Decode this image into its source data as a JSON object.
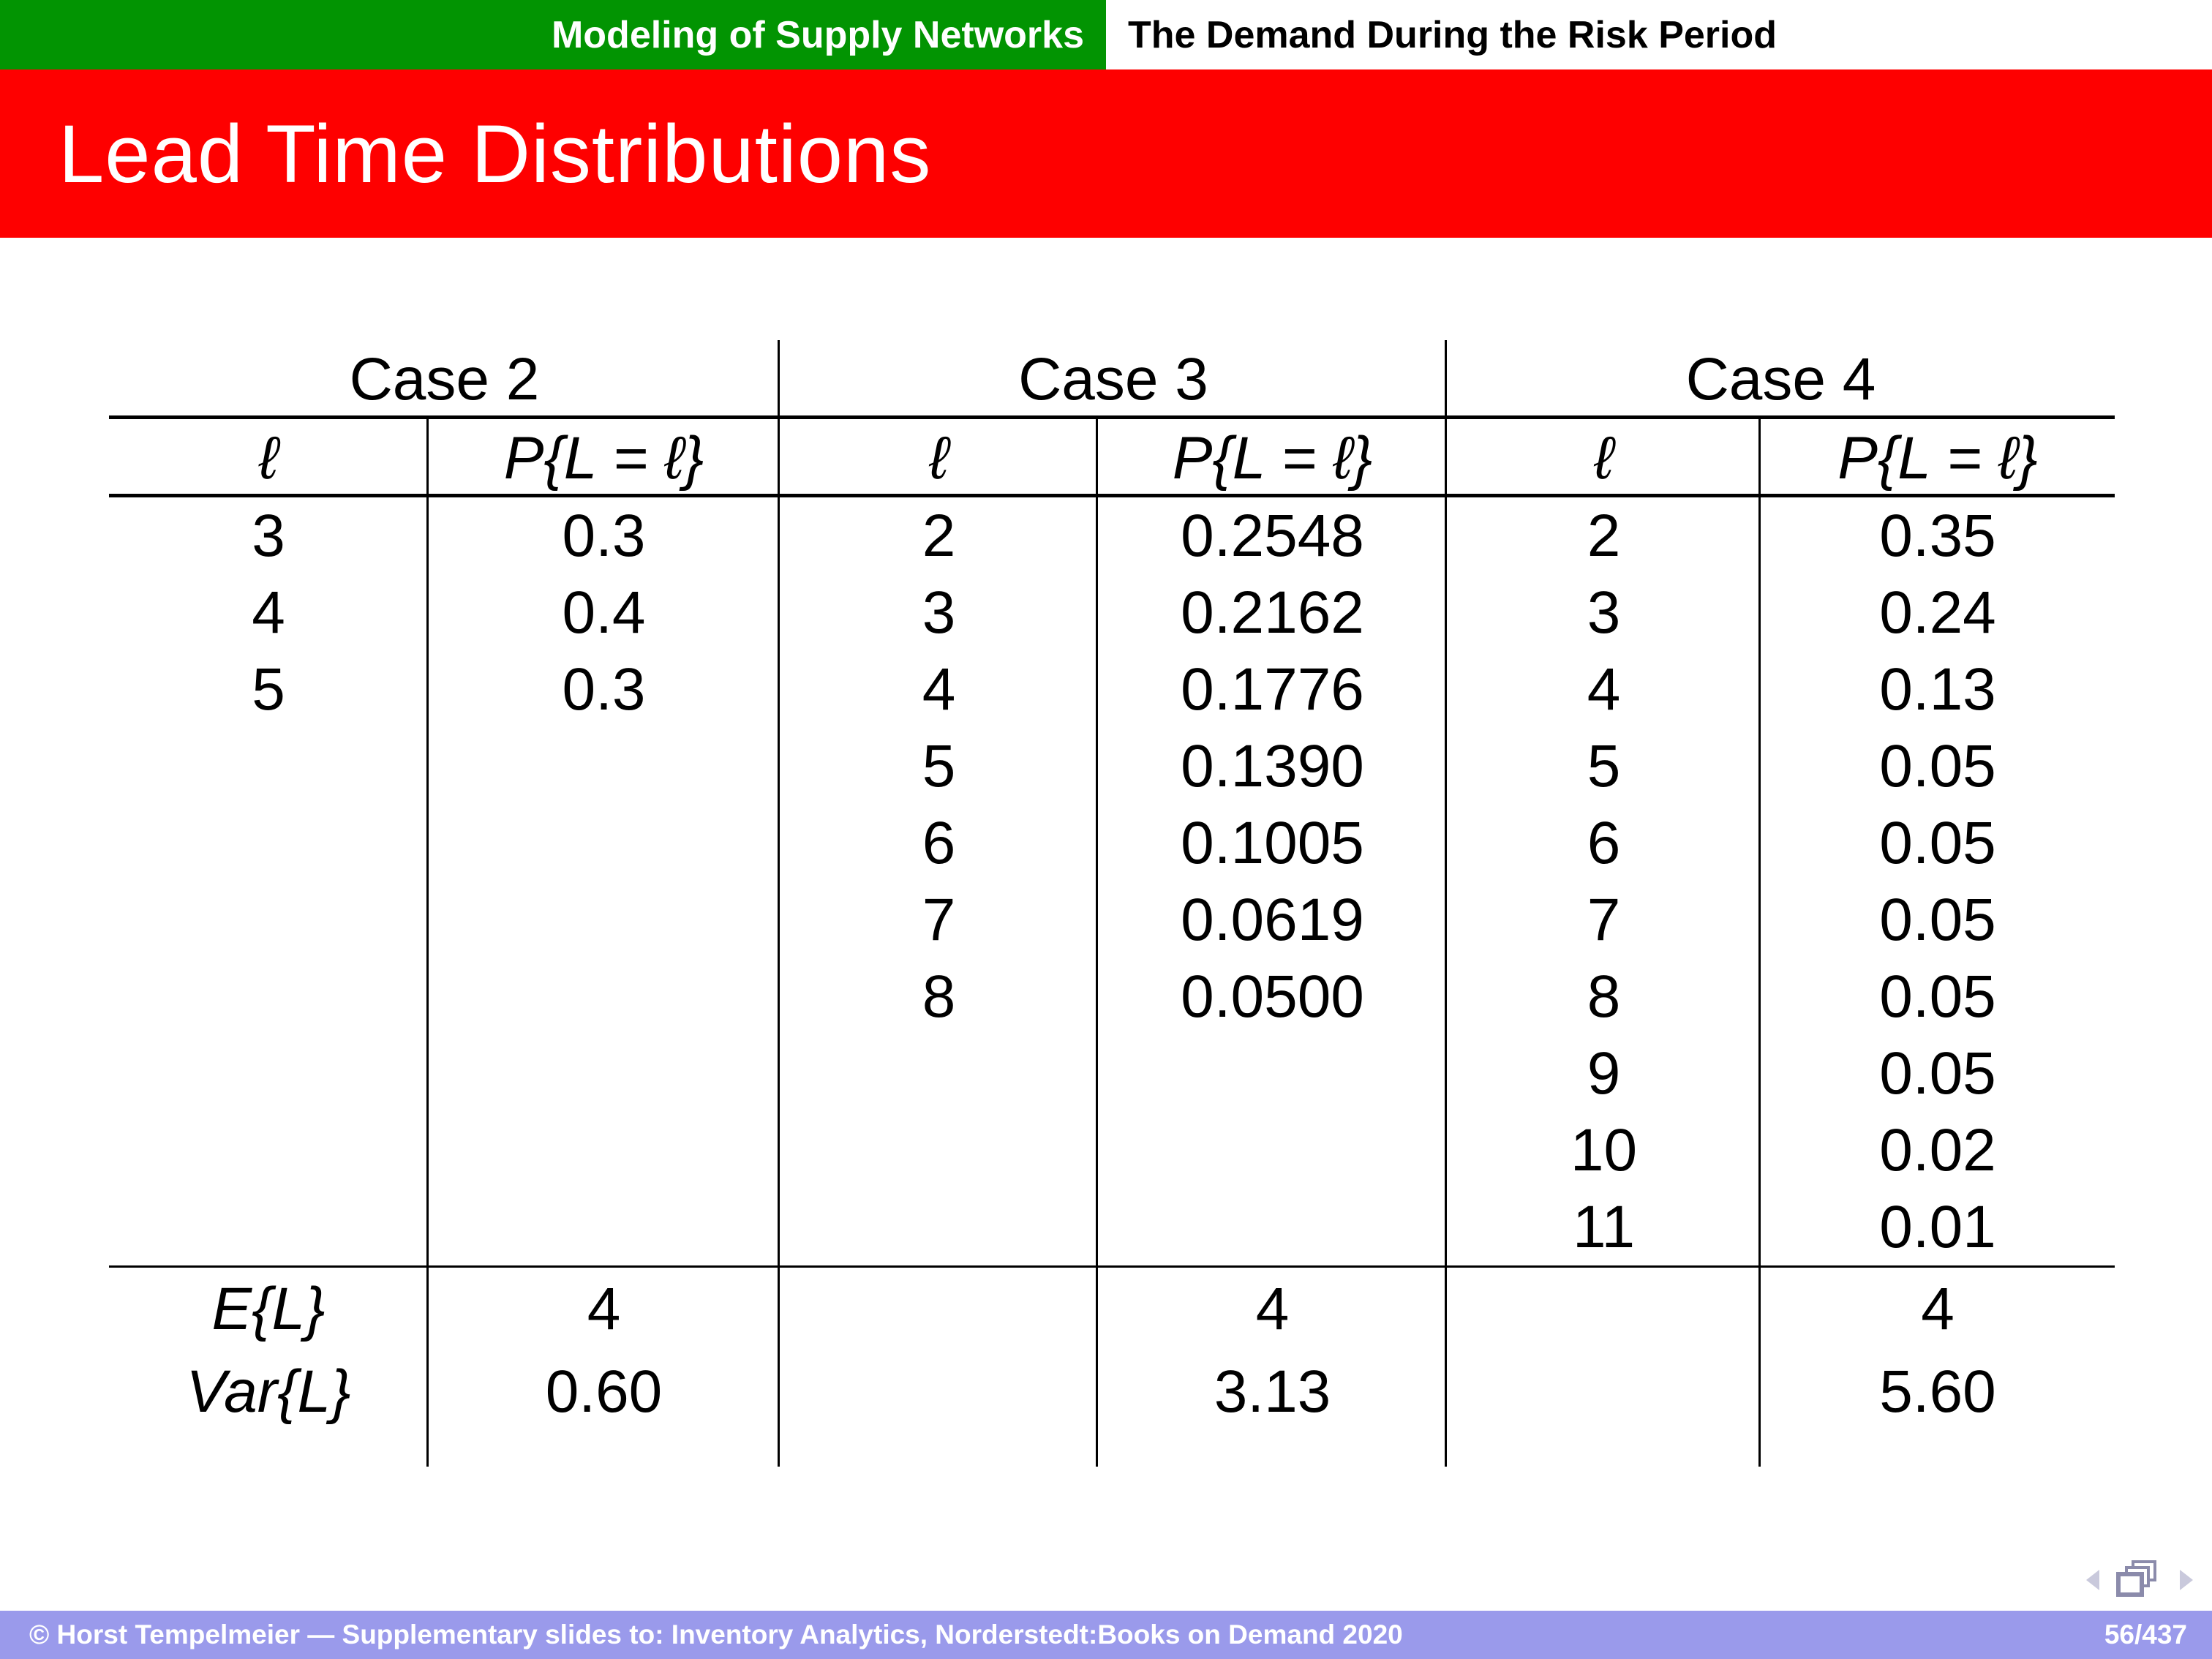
{
  "header": {
    "section": "Modeling of Supply Networks",
    "subsection": "The Demand During the Risk Period"
  },
  "title": "Lead Time Distributions",
  "table": {
    "col_headers": {
      "l": "ℓ",
      "p": "P{L = ℓ}"
    },
    "cases": [
      {
        "name": "Case 2",
        "rows": [
          [
            "3",
            "0.3"
          ],
          [
            "4",
            "0.4"
          ],
          [
            "5",
            "0.3"
          ]
        ],
        "E": "4",
        "Var": "0.60"
      },
      {
        "name": "Case 3",
        "rows": [
          [
            "2",
            "0.2548"
          ],
          [
            "3",
            "0.2162"
          ],
          [
            "4",
            "0.1776"
          ],
          [
            "5",
            "0.1390"
          ],
          [
            "6",
            "0.1005"
          ],
          [
            "7",
            "0.0619"
          ],
          [
            "8",
            "0.0500"
          ]
        ],
        "E": "4",
        "Var": "3.13"
      },
      {
        "name": "Case 4",
        "rows": [
          [
            "2",
            "0.35"
          ],
          [
            "3",
            "0.24"
          ],
          [
            "4",
            "0.13"
          ],
          [
            "5",
            "0.05"
          ],
          [
            "6",
            "0.05"
          ],
          [
            "7",
            "0.05"
          ],
          [
            "8",
            "0.05"
          ],
          [
            "9",
            "0.05"
          ],
          [
            "10",
            "0.02"
          ],
          [
            "11",
            "0.01"
          ]
        ],
        "E": "4",
        "Var": "5.60"
      }
    ],
    "stats": {
      "E_label": "E{L}",
      "Var_label": "Var{L}"
    }
  },
  "nav": {
    "prev": "previous-slide",
    "pages": "frame-pages",
    "next": "next-slide"
  },
  "footer": {
    "copyright": "© Horst Tempelmeier — Supplementary slides to: Inventory Analytics, Norderstedt:Books on Demand 2020",
    "page": "56/437"
  },
  "colors": {
    "green": "#029402",
    "red": "#fe0000",
    "footer": "#9a9aeb",
    "nav_triangle": "#c9c9dc",
    "nav_pages": "#8b8bab"
  }
}
